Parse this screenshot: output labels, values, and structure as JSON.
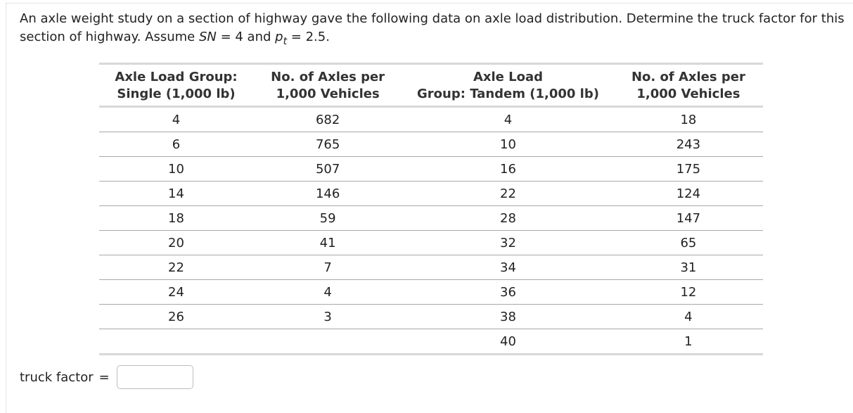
{
  "problem": {
    "text_before_sn": "An axle weight study on a section of highway gave the following data on axle load distribution. Determine the truck factor for this section of highway. Assume ",
    "sn_symbol": "SN",
    "sn_value": " = 4 and ",
    "pt_symbol": "p",
    "pt_subscript": "t",
    "pt_value": " = 2.5."
  },
  "table": {
    "headers": [
      [
        "Axle Load Group:",
        "Single (1,000 lb)"
      ],
      [
        "No. of Axles per",
        "1,000 Vehicles"
      ],
      [
        "Axle Load",
        "Group: Tandem (1,000 lb)"
      ],
      [
        "No. of Axles per",
        "1,000 Vehicles"
      ]
    ],
    "rows": [
      [
        "4",
        "682",
        "4",
        "18"
      ],
      [
        "6",
        "765",
        "10",
        "243"
      ],
      [
        "10",
        "507",
        "16",
        "175"
      ],
      [
        "14",
        "146",
        "22",
        "124"
      ],
      [
        "18",
        "59",
        "28",
        "147"
      ],
      [
        "20",
        "41",
        "32",
        "65"
      ],
      [
        "22",
        "7",
        "34",
        "31"
      ],
      [
        "24",
        "4",
        "36",
        "12"
      ],
      [
        "26",
        "3",
        "38",
        "4"
      ],
      [
        "",
        "",
        "40",
        "1"
      ]
    ]
  },
  "answer": {
    "label": "truck factor",
    "equals": "=",
    "value": ""
  }
}
